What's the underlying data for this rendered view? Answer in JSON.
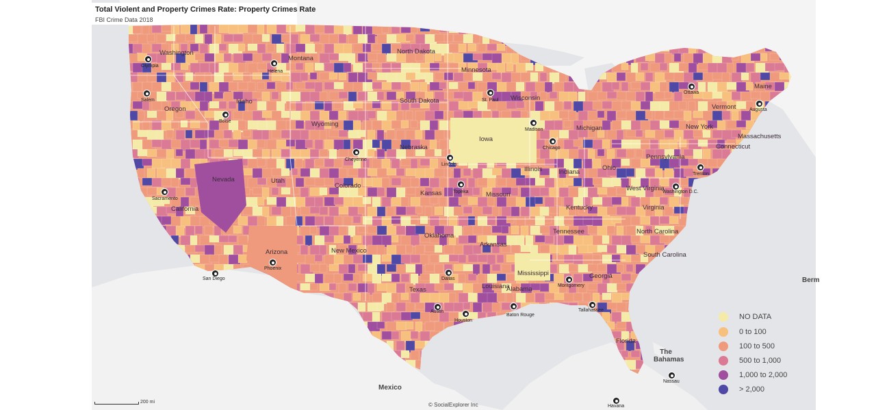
{
  "header": {
    "title": "Total Violent and Property Crimes Rate: Property Crimes Rate",
    "subtitle": "FBI Crime Data 2018"
  },
  "legend": {
    "items": [
      {
        "label": "NO DATA",
        "color": "#f5eba8"
      },
      {
        "label": "0 to 100",
        "color": "#f7c07e"
      },
      {
        "label": "100 to 500",
        "color": "#ef9a7c"
      },
      {
        "label": "500 to 1,000",
        "color": "#db7a95"
      },
      {
        "label": "1,000 to 2,000",
        "color": "#a04f9f"
      },
      {
        "label": "> 2,000",
        "color": "#5048a5"
      }
    ]
  },
  "states": [
    "Washington",
    "Montana",
    "North Dakota",
    "Minnesota",
    "Oregon",
    "Idaho",
    "South Dakota",
    "Wisconsin",
    "Michigan",
    "Wyoming",
    "Iowa",
    "Nebraska",
    "Illinois",
    "Indiana",
    "Ohio",
    "Pennsylvania",
    "New York",
    "Vermont",
    "Maine",
    "Massachusetts",
    "Connecticut",
    "Nevada",
    "Utah",
    "Colorado",
    "Kansas",
    "Missouri",
    "Kentucky",
    "West Virginia",
    "Virginia",
    "California",
    "Arizona",
    "New Mexico",
    "Oklahoma",
    "Tennessee",
    "North Carolina",
    "Arkansas",
    "South Carolina",
    "Mississippi",
    "Georgia",
    "Alabama",
    "Texas",
    "Louisiana",
    "Florida"
  ],
  "cities": [
    "Olympia",
    "Helena",
    "Salem",
    "Boise",
    "St. Paul",
    "Madison",
    "Chicago",
    "Cheyenne",
    "Lincoln",
    "Topeka",
    "Sacramento",
    "Phoenix",
    "San Diego",
    "Dallas",
    "Austin",
    "Houston",
    "Baton Rouge",
    "Montgomery",
    "Tallahassee",
    "Trenton",
    "Washington D.C.",
    "Ottawa",
    "Augusta",
    "Nassau",
    "Havana"
  ],
  "external": [
    "Mexico",
    "The Bahamas",
    "Berm"
  ],
  "scale_label": "200 mi",
  "credit": "© SocialExplorer Inc"
}
